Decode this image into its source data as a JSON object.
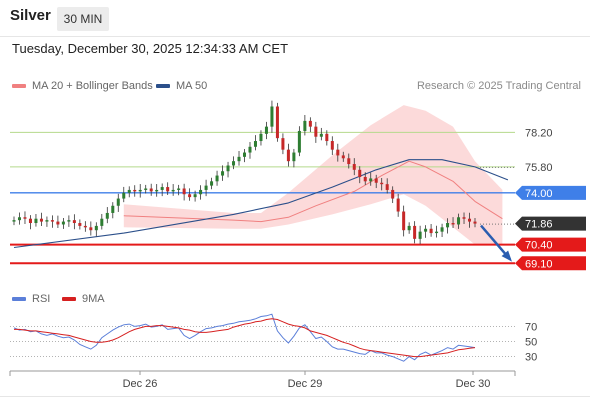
{
  "header": {
    "instrument": "Silver",
    "timeframe": "30 MIN",
    "datetime": "Tuesday, December 30, 2025 12:34:33 AM CET"
  },
  "legend": {
    "ma20_label": "MA 20 + Bollinger Bands",
    "ma50_label": "MA 50",
    "credit": "Research © 2025 Trading Central",
    "rsi_label": "RSI",
    "rsi_ma_label": "9MA"
  },
  "colors": {
    "candle_up": "#2e7d32",
    "candle_down": "#c62828",
    "bollinger_fill": "#fbd3d3",
    "ma20": "#f08080",
    "ma50": "#2b4f8a",
    "resistance_line": "#b5d98c",
    "pivot_line": "#3f7fe8",
    "support_line": "#e41a1a",
    "last_price_box": "#333333",
    "rsi": "#5b7fd9",
    "rsi_ma": "#d62020"
  },
  "chart_data": {
    "type": "candlestick",
    "y_range": [
      67.8,
      80.8
    ],
    "x_ticks": [
      "Dec 26",
      "Dec 29",
      "Dec 30"
    ],
    "levels": [
      {
        "value": 78.2,
        "label": "78.20",
        "kind": "resistance"
      },
      {
        "value": 75.8,
        "label": "75.80",
        "kind": "resistance"
      },
      {
        "value": 74.0,
        "label": "74.00",
        "kind": "pivot"
      },
      {
        "value": 71.86,
        "label": "71.86",
        "kind": "last"
      },
      {
        "value": 70.4,
        "label": "70.40",
        "kind": "support"
      },
      {
        "value": 69.1,
        "label": "69.10",
        "kind": "support"
      }
    ],
    "close_series": [
      72.1,
      72.3,
      72.2,
      71.9,
      72.2,
      72.0,
      72.1,
      72.0,
      71.8,
      72.0,
      72.1,
      71.9,
      71.7,
      71.6,
      71.4,
      71.7,
      72.2,
      72.6,
      73.1,
      73.6,
      74.0,
      74.2,
      74.1,
      74.2,
      74.3,
      74.1,
      74.2,
      74.4,
      74.1,
      74.2,
      74.3,
      73.9,
      73.7,
      73.9,
      74.2,
      74.5,
      74.8,
      75.2,
      75.5,
      75.9,
      76.2,
      76.5,
      76.8,
      77.2,
      77.6,
      78.1,
      78.6,
      80.0,
      77.8,
      77.0,
      76.2,
      76.8,
      78.3,
      79.0,
      78.6,
      77.9,
      78.1,
      77.6,
      77.0,
      76.6,
      76.4,
      76.0,
      75.6,
      75.1,
      74.8,
      75.0,
      74.7,
      74.6,
      74.2,
      73.6,
      72.7,
      71.4,
      71.7,
      70.8,
      71.3,
      71.5,
      71.2,
      71.3,
      71.6,
      71.9,
      71.8,
      72.3,
      72.2,
      72.0,
      71.86
    ],
    "ma20_points": [
      [
        20,
        72.4
      ],
      [
        40,
        72.1
      ],
      [
        45,
        72.0
      ],
      [
        50,
        72.3
      ],
      [
        55,
        73.1
      ],
      [
        62,
        74.1
      ],
      [
        67,
        75.2
      ],
      [
        72,
        76.2
      ],
      [
        75,
        75.8
      ],
      [
        80,
        74.8
      ],
      [
        84,
        73.4
      ],
      [
        89,
        72.2
      ]
    ],
    "ma50_points": [
      [
        0,
        70.2
      ],
      [
        20,
        71.2
      ],
      [
        40,
        72.5
      ],
      [
        50,
        73.3
      ],
      [
        58,
        74.4
      ],
      [
        66,
        75.6
      ],
      [
        72,
        76.3
      ],
      [
        78,
        76.3
      ],
      [
        84,
        75.8
      ],
      [
        90,
        74.9
      ]
    ],
    "bollinger_upper": [
      [
        20,
        73.2
      ],
      [
        40,
        72.6
      ],
      [
        45,
        72.6
      ],
      [
        50,
        74.0
      ],
      [
        58,
        76.6
      ],
      [
        65,
        78.7
      ],
      [
        71,
        80.1
      ],
      [
        75,
        79.7
      ],
      [
        80,
        78.6
      ],
      [
        84,
        76.2
      ],
      [
        89,
        74.2
      ]
    ],
    "bollinger_lower": [
      [
        20,
        71.6
      ],
      [
        40,
        71.5
      ],
      [
        45,
        71.5
      ],
      [
        50,
        71.8
      ],
      [
        58,
        72.5
      ],
      [
        65,
        73.2
      ],
      [
        71,
        73.9
      ],
      [
        75,
        73.1
      ],
      [
        80,
        71.6
      ],
      [
        84,
        70.4
      ],
      [
        89,
        70.4
      ]
    ],
    "projection": {
      "from": 71.86,
      "to": 69.1
    },
    "rsi": {
      "levels": [
        70,
        50,
        30
      ],
      "y_range": [
        15,
        85
      ],
      "values": [
        68,
        65,
        66,
        63,
        64,
        60,
        58,
        60,
        57,
        55,
        56,
        52,
        46,
        43,
        40,
        45,
        55,
        60,
        65,
        69,
        72,
        73,
        70,
        71,
        73,
        69,
        70,
        72,
        66,
        67,
        68,
        58,
        54,
        58,
        63,
        67,
        68,
        70,
        71,
        73,
        74,
        76,
        77,
        78,
        80,
        83,
        84,
        86,
        64,
        55,
        48,
        57,
        68,
        72,
        63,
        54,
        56,
        50,
        43,
        40,
        40,
        38,
        36,
        34,
        33,
        38,
        35,
        35,
        32,
        30,
        27,
        24,
        30,
        26,
        33,
        36,
        32,
        35,
        38,
        42,
        40,
        45,
        44,
        43,
        42
      ],
      "ma_values": [
        66,
        66,
        65,
        64,
        64,
        63,
        62,
        61,
        60,
        59,
        58,
        56,
        54,
        52,
        50,
        49,
        49,
        50,
        52,
        55,
        59,
        63,
        66,
        68,
        70,
        70,
        71,
        71,
        70,
        69,
        68,
        66,
        65,
        63,
        62,
        62,
        63,
        64,
        65,
        66,
        69,
        71,
        73,
        74,
        76,
        77,
        79,
        80,
        79,
        76,
        73,
        71,
        70,
        68,
        64,
        62,
        60,
        58,
        55,
        52,
        49,
        47,
        44,
        41,
        39,
        38,
        37,
        36,
        35,
        34,
        33,
        32,
        31,
        30,
        30,
        31,
        32,
        33,
        34,
        35,
        37,
        39,
        40,
        41,
        42
      ]
    }
  }
}
